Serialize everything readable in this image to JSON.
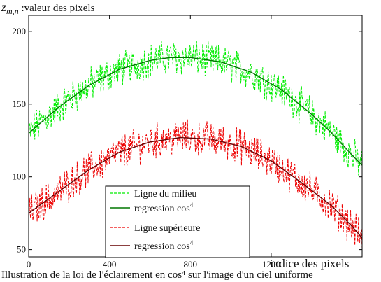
{
  "chart_data": {
    "type": "line",
    "ylabel": "z_{m,n}",
    "ylabel_parts": {
      "var": "z",
      "sub": "m,n",
      "text": " :valeur des pixels"
    },
    "xlabel": "indice des pixels",
    "xlim": [
      0,
      1650
    ],
    "ylim": [
      45,
      211
    ],
    "xticks": [
      0,
      400,
      800,
      1200
    ],
    "xtick_labels": [
      "0",
      "400",
      "800",
      "1200"
    ],
    "yticks": [
      50,
      100,
      150,
      200
    ],
    "ytick_labels": [
      "50",
      "100",
      "150",
      "200"
    ],
    "grid": false,
    "legend_position": "bottom-center",
    "series": [
      {
        "name": "Ligne du milieu",
        "style": "dashed",
        "color": "#00ee00",
        "kind": "noisy",
        "x": [
          0,
          150,
          300,
          450,
          600,
          700,
          800,
          950,
          1100,
          1250,
          1400,
          1500,
          1600,
          1650
        ],
        "y": [
          130,
          148,
          163,
          174,
          180,
          182,
          182,
          179,
          172,
          160,
          143,
          130,
          115,
          108
        ],
        "noise_amplitude": 10
      },
      {
        "name": "regression cos",
        "name_superscript": "4",
        "style": "solid",
        "color": "#007700",
        "kind": "fit",
        "x": [
          0,
          150,
          300,
          450,
          600,
          700,
          800,
          950,
          1100,
          1250,
          1400,
          1500,
          1600,
          1650
        ],
        "y": [
          130,
          148,
          163,
          174,
          180,
          182,
          182,
          179,
          172,
          160,
          143,
          130,
          115,
          108
        ]
      },
      {
        "name": "Ligne supérieure",
        "style": "dashed",
        "color": "#ee0000",
        "kind": "noisy",
        "x": [
          0,
          150,
          300,
          450,
          600,
          750,
          900,
          1050,
          1200,
          1350,
          1500,
          1600,
          1650
        ],
        "y": [
          75,
          90,
          105,
          117,
          124,
          127,
          126,
          121,
          111,
          96,
          80,
          66,
          58
        ],
        "noise_amplitude": 10
      },
      {
        "name": "regression cos",
        "name_superscript": "4",
        "style": "solid",
        "color": "#660000",
        "kind": "fit",
        "x": [
          0,
          150,
          300,
          450,
          600,
          750,
          900,
          1050,
          1200,
          1350,
          1500,
          1600,
          1650
        ],
        "y": [
          75,
          90,
          105,
          117,
          124,
          127,
          126,
          121,
          111,
          96,
          80,
          66,
          58
        ]
      }
    ]
  },
  "caption": "Illustration de la loi de l'éclairement en cos⁴ sur l'image d'un ciel uniforme"
}
